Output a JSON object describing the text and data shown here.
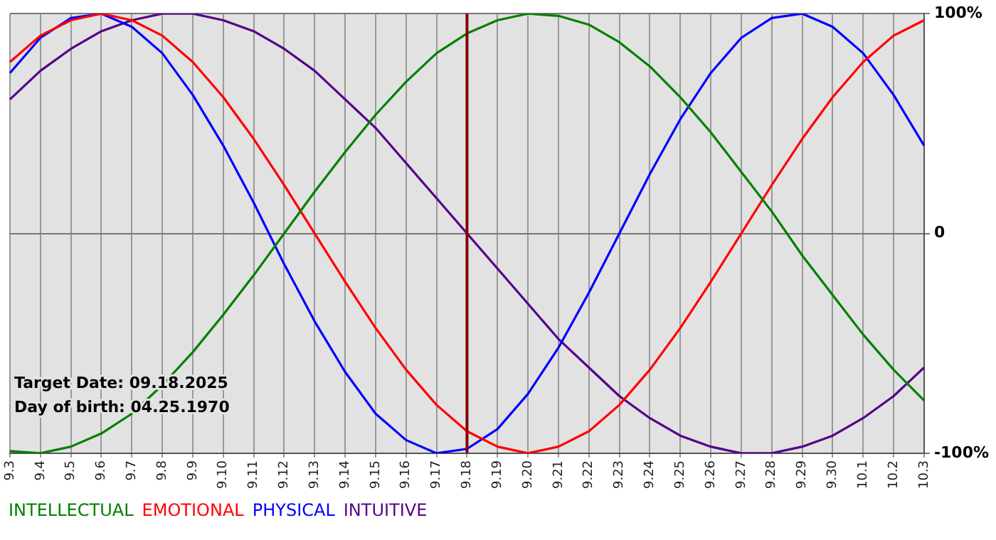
{
  "chart_data": {
    "type": "line",
    "categories": [
      "9.3",
      "9.4",
      "9.5",
      "9.6",
      "9.7",
      "9.8",
      "9.9",
      "9.10",
      "9.11",
      "9.12",
      "9.13",
      "9.14",
      "9.15",
      "9.16",
      "9.17",
      "9.18",
      "9.19",
      "9.20",
      "9.21",
      "9.22",
      "9.23",
      "9.24",
      "9.25",
      "9.26",
      "9.27",
      "9.28",
      "9.29",
      "9.30",
      "10.1",
      "10.2",
      "10.3"
    ],
    "series": [
      {
        "name": "INTELLECTUAL",
        "color": "#008000",
        "values": [
          -99,
          -100,
          -97,
          -91,
          -82,
          -69,
          -54,
          -37,
          -19,
          0,
          19,
          37,
          54,
          69,
          82,
          91,
          97,
          100,
          99,
          95,
          87,
          76,
          62,
          46,
          28,
          10,
          -10,
          -28,
          -46,
          -62,
          -76
        ]
      },
      {
        "name": "EMOTIONAL",
        "color": "#ff0000",
        "values": [
          78,
          90,
          97,
          100,
          97,
          90,
          78,
          62,
          43,
          22,
          0,
          -22,
          -43,
          -62,
          -78,
          -90,
          -97,
          -100,
          -97,
          -90,
          -78,
          -62,
          -43,
          -22,
          0,
          22,
          43,
          62,
          78,
          90,
          97
        ]
      },
      {
        "name": "PHYSICAL",
        "color": "#0000ff",
        "values": [
          73,
          89,
          98,
          100,
          94,
          82,
          63,
          40,
          14,
          -14,
          -40,
          -63,
          -82,
          -94,
          -100,
          -98,
          -89,
          -73,
          -52,
          -27,
          0,
          27,
          52,
          73,
          89,
          98,
          100,
          94,
          82,
          63,
          40
        ]
      },
      {
        "name": "INTUITIVE",
        "color": "#550088",
        "values": [
          61,
          74,
          84,
          92,
          97,
          100,
          100,
          97,
          92,
          84,
          74,
          61,
          48,
          32,
          16,
          0,
          -16,
          -32,
          -48,
          -61,
          -74,
          -84,
          -92,
          -97,
          -100,
          -100,
          -97,
          -92,
          -84,
          -74,
          -61
        ]
      }
    ],
    "ylim": [
      -100,
      100
    ],
    "yticks": [
      {
        "value": -100,
        "label": "-100%"
      },
      {
        "value": 0,
        "label": "0"
      },
      {
        "value": 100,
        "label": "100%"
      }
    ],
    "ref_lines": [
      {
        "axis": "x",
        "value": "9.18",
        "color": "#800000"
      }
    ],
    "annotations": [
      "Target Date: 09.18.2025",
      "Day of birth: 04.25.1970"
    ],
    "grid": true,
    "legend": "bottom",
    "marker": "none",
    "line_style": "solid"
  }
}
